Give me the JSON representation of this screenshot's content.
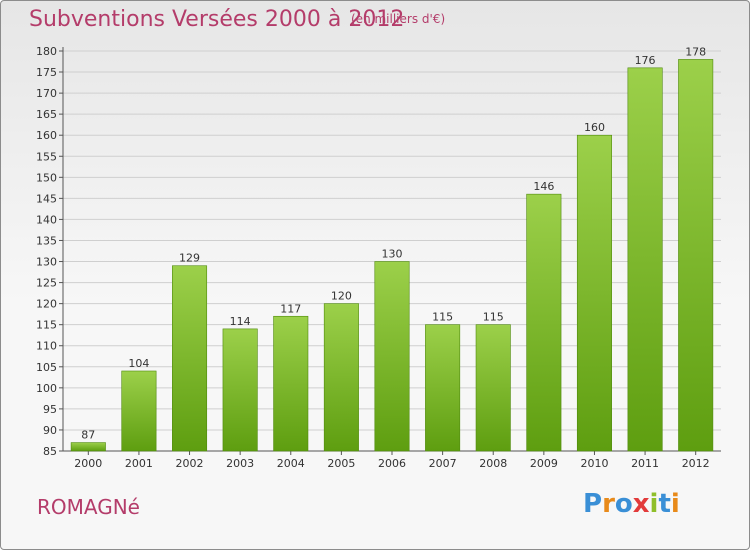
{
  "title": "Subventions Versées 2000 à 2012",
  "unit_note": "(en milliers d'€)",
  "commune": "ROMAGNé",
  "logo": {
    "text": "Proxiti",
    "letter_colors": [
      "#3a8fd6",
      "#e88a1a",
      "#3a8fd6",
      "#e23a3a",
      "#8fbf2a",
      "#3a8fd6",
      "#e88a1a"
    ]
  },
  "colors": {
    "bar_top": "#9cd04a",
    "bar_bottom": "#5e9e10",
    "accent_text": "#b43c6a",
    "grid": "#cfcfcf"
  },
  "chart_data": {
    "type": "bar",
    "categories": [
      "2000",
      "2001",
      "2002",
      "2003",
      "2004",
      "2005",
      "2006",
      "2007",
      "2008",
      "2009",
      "2010",
      "2011",
      "2012"
    ],
    "values": [
      87,
      104,
      129,
      114,
      117,
      120,
      130,
      115,
      115,
      146,
      160,
      176,
      178
    ],
    "ylim": [
      85,
      180
    ],
    "yticks": [
      85,
      90,
      95,
      100,
      105,
      110,
      115,
      120,
      125,
      130,
      135,
      140,
      145,
      150,
      155,
      160,
      165,
      170,
      175,
      180
    ],
    "grid": true,
    "data_labels": true
  }
}
